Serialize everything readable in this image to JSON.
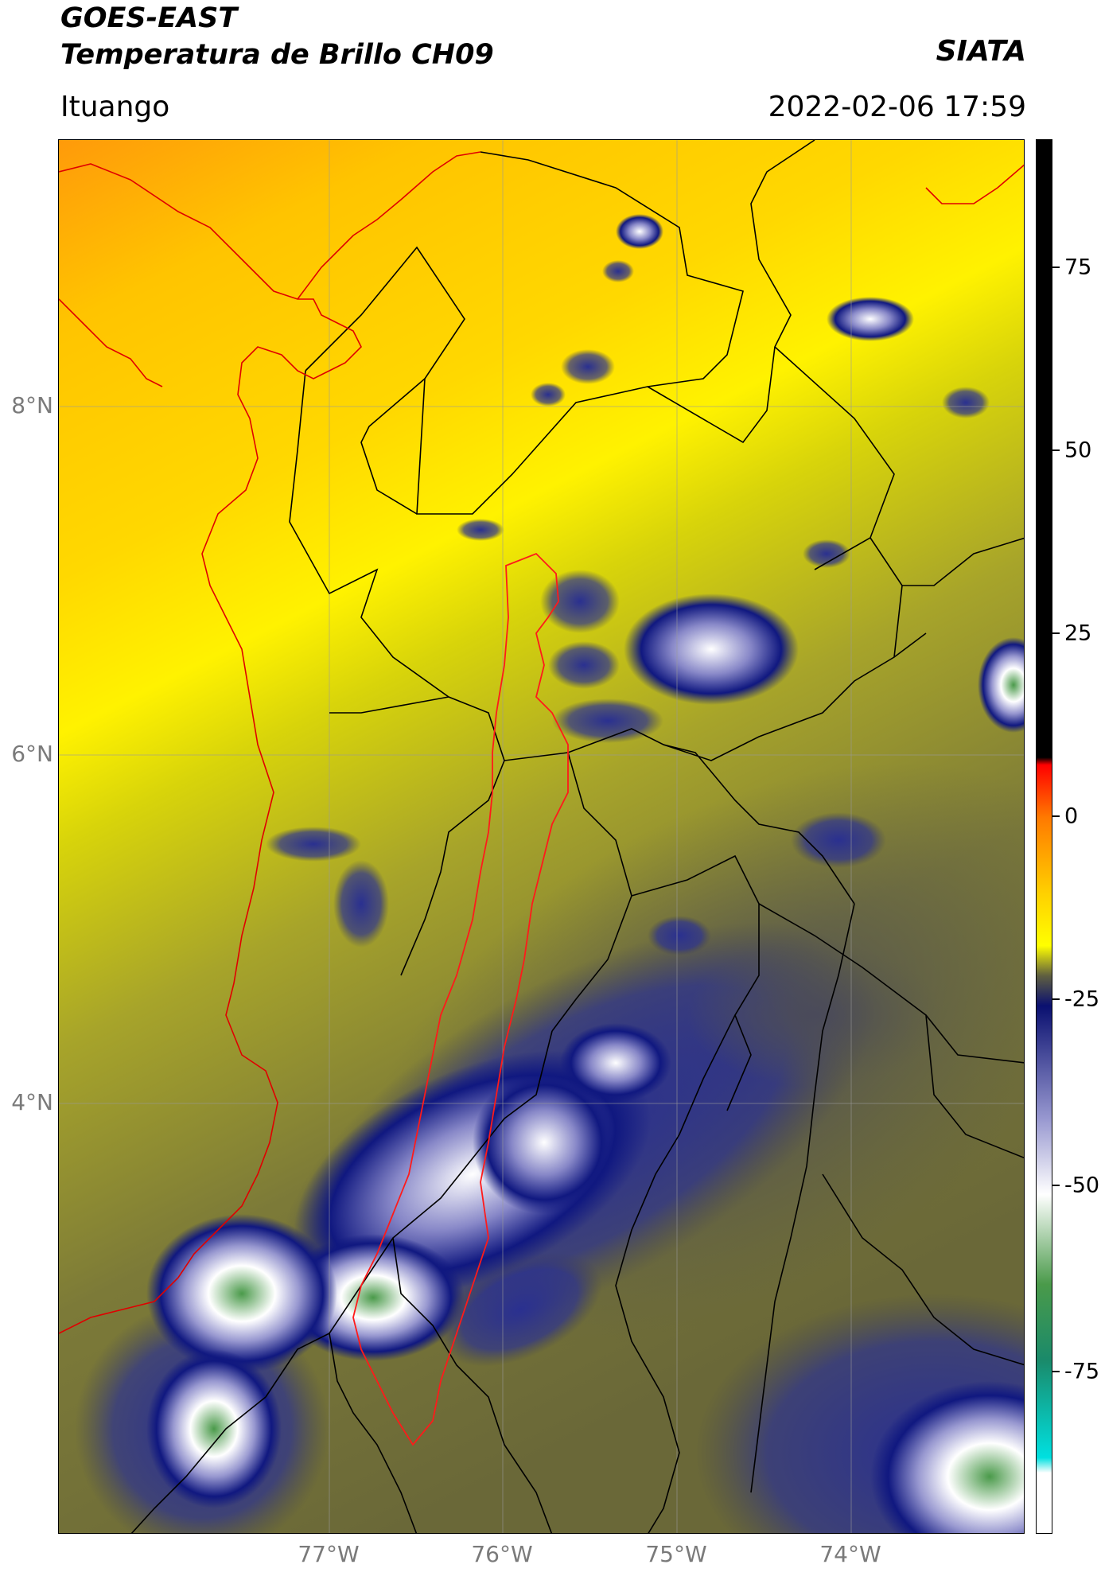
{
  "header": {
    "title_line1": "GOES-EAST",
    "title_line2": "Temperatura de Brillo CH09",
    "organization": "SIATA",
    "location": "Ituango",
    "timestamp": "2022-02-06 17:59"
  },
  "map": {
    "lat_labels": [
      "8°N",
      "6°N",
      "4°N"
    ],
    "lon_labels": [
      "77°W",
      "76°W",
      "75°W",
      "74°W"
    ],
    "country_border_color": "#e00000",
    "admin_border_color": "#000000",
    "grid_color": "#9a9a9a"
  },
  "colorbar": {
    "ticks": [
      "75",
      "50",
      "25",
      "0",
      "-25",
      "-50",
      "-75"
    ],
    "stops": [
      {
        "value": 90,
        "color": "#000000"
      },
      {
        "value": 8,
        "color": "#000000"
      },
      {
        "value": 7,
        "color": "#ff0000"
      },
      {
        "value": 0,
        "color": "#ff7a00"
      },
      {
        "value": -10,
        "color": "#ffd000"
      },
      {
        "value": -17,
        "color": "#ffff00"
      },
      {
        "value": -21,
        "color": "#5f5f40"
      },
      {
        "value": -25,
        "color": "#0a1070"
      },
      {
        "value": -40,
        "color": "#9898d0"
      },
      {
        "value": -50,
        "color": "#ffffff"
      },
      {
        "value": -62,
        "color": "#4a9a4a"
      },
      {
        "value": -72,
        "color": "#1a8a6a"
      },
      {
        "value": -85,
        "color": "#00e0e0"
      },
      {
        "value": -87,
        "color": "#ffffff"
      },
      {
        "value": -95,
        "color": "#ffffff"
      }
    ]
  }
}
